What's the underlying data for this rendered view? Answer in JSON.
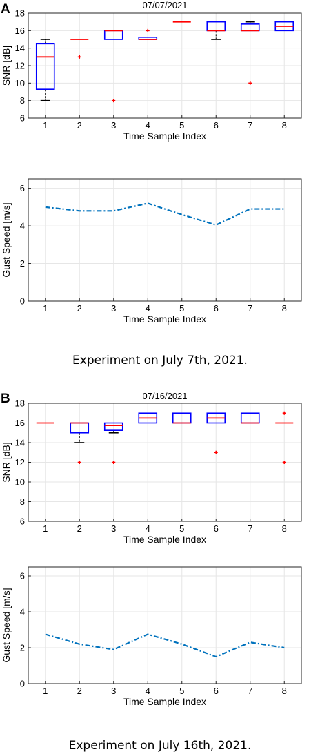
{
  "panels": [
    {
      "letter": "A",
      "caption": "Experiment on July 7th, 2021.",
      "box_chart": {
        "type": "box",
        "title": "07/07/2021",
        "xlabel": "Time Sample Index",
        "ylabel": "SNR [dB]",
        "categories": [
          1,
          2,
          3,
          4,
          5,
          6,
          7,
          8
        ],
        "ylim": [
          6,
          18
        ],
        "yticks": [
          6,
          8,
          10,
          12,
          14,
          16,
          18
        ],
        "grid": true,
        "boxes": [
          {
            "x": 1,
            "q1": 9.3,
            "median": 13,
            "q3": 14.5,
            "whisker_low": 8,
            "whisker_high": 15,
            "outliers": []
          },
          {
            "x": 2,
            "q1": 15,
            "median": 15,
            "q3": 15,
            "whisker_low": 15,
            "whisker_high": 15,
            "outliers": [
              13
            ]
          },
          {
            "x": 3,
            "q1": 15,
            "median": 16,
            "q3": 16,
            "whisker_low": 15,
            "whisker_high": 16,
            "outliers": [
              8
            ]
          },
          {
            "x": 4,
            "q1": 15,
            "median": 15,
            "q3": 15.25,
            "whisker_low": 15,
            "whisker_high": 15.25,
            "outliers": [
              16
            ]
          },
          {
            "x": 5,
            "q1": 17,
            "median": 17,
            "q3": 17,
            "whisker_low": 17,
            "whisker_high": 17,
            "outliers": []
          },
          {
            "x": 6,
            "q1": 16,
            "median": 16,
            "q3": 17,
            "whisker_low": 15,
            "whisker_high": 17,
            "outliers": []
          },
          {
            "x": 7,
            "q1": 16,
            "median": 16,
            "q3": 16.75,
            "whisker_low": 16,
            "whisker_high": 17,
            "outliers": [
              10
            ]
          },
          {
            "x": 8,
            "q1": 16,
            "median": 16.5,
            "q3": 17,
            "whisker_low": 16,
            "whisker_high": 17,
            "outliers": []
          }
        ]
      },
      "line_chart": {
        "type": "line",
        "xlabel": "Time Sample Index",
        "ylabel": "Gust Speed [m/s]",
        "x": [
          1,
          2,
          3,
          4,
          5,
          6,
          7,
          8
        ],
        "values": [
          5.0,
          4.8,
          4.8,
          5.2,
          4.6,
          4.05,
          4.9,
          4.9
        ],
        "ylim": [
          0,
          6.5
        ],
        "yticks": [
          0,
          2,
          4,
          6
        ],
        "grid": true,
        "line_style": "dash-dot"
      }
    },
    {
      "letter": "B",
      "caption": "Experiment on July 16th, 2021.",
      "box_chart": {
        "type": "box",
        "title": "07/16/2021",
        "xlabel": "Time Sample Index",
        "ylabel": "SNR [dB]",
        "categories": [
          1,
          2,
          3,
          4,
          5,
          6,
          7,
          8
        ],
        "ylim": [
          6,
          18
        ],
        "yticks": [
          6,
          8,
          10,
          12,
          14,
          16,
          18
        ],
        "grid": true,
        "boxes": [
          {
            "x": 1,
            "q1": 16,
            "median": 16,
            "q3": 16,
            "whisker_low": 16,
            "whisker_high": 16,
            "outliers": []
          },
          {
            "x": 2,
            "q1": 15,
            "median": 16,
            "q3": 16,
            "whisker_low": 14,
            "whisker_high": 16,
            "outliers": [
              12
            ]
          },
          {
            "x": 3,
            "q1": 15.25,
            "median": 15.75,
            "q3": 16,
            "whisker_low": 15,
            "whisker_high": 16,
            "outliers": [
              12
            ]
          },
          {
            "x": 4,
            "q1": 16,
            "median": 16.5,
            "q3": 17,
            "whisker_low": 16,
            "whisker_high": 17,
            "outliers": []
          },
          {
            "x": 5,
            "q1": 16,
            "median": 16,
            "q3": 17,
            "whisker_low": 16,
            "whisker_high": 17,
            "outliers": []
          },
          {
            "x": 6,
            "q1": 16,
            "median": 16.5,
            "q3": 17,
            "whisker_low": 16,
            "whisker_high": 17,
            "outliers": [
              13
            ]
          },
          {
            "x": 7,
            "q1": 16,
            "median": 16,
            "q3": 17,
            "whisker_low": 16,
            "whisker_high": 17,
            "outliers": []
          },
          {
            "x": 8,
            "q1": 16,
            "median": 16,
            "q3": 16,
            "whisker_low": 16,
            "whisker_high": 16,
            "outliers": [
              17,
              12
            ]
          }
        ]
      },
      "line_chart": {
        "type": "line",
        "xlabel": "Time Sample Index",
        "ylabel": "Gust Speed [m/s]",
        "x": [
          1,
          2,
          3,
          4,
          5,
          6,
          7,
          8
        ],
        "values": [
          2.75,
          2.2,
          1.9,
          2.75,
          2.2,
          1.5,
          2.3,
          2.0
        ],
        "ylim": [
          0,
          6.5
        ],
        "yticks": [
          0,
          2,
          4,
          6
        ],
        "grid": true,
        "line_style": "dash-dot"
      }
    }
  ],
  "colors": {
    "box": "#0000ff",
    "median": "#ff0000",
    "whisker": "#000000",
    "outlier": "#ff0000",
    "line": "#0072bd",
    "grid": "#e6e6e6",
    "axis": "#262626"
  }
}
